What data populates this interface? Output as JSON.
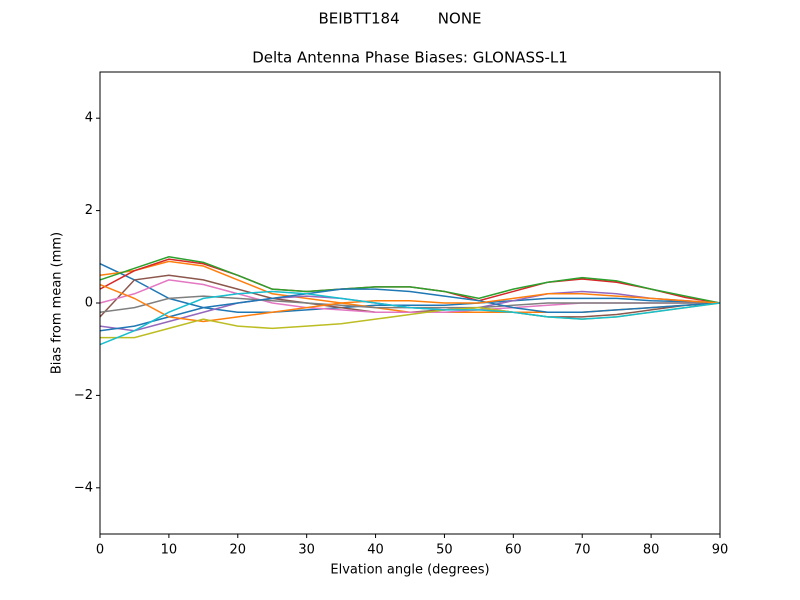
{
  "chart_data": {
    "type": "line",
    "suptitle": "BEIBTT184        NONE",
    "title": "Delta Antenna Phase Biases: GLONASS-L1",
    "x_label": "Elvation angle (degrees)",
    "y_label": "Bias from mean (mm)",
    "x": [
      0,
      5,
      10,
      15,
      20,
      25,
      30,
      35,
      40,
      45,
      50,
      55,
      60,
      65,
      70,
      75,
      80,
      85,
      90
    ],
    "xlim": [
      0,
      90
    ],
    "xticks": [
      0,
      10,
      20,
      30,
      40,
      50,
      60,
      70,
      80,
      90
    ],
    "ylim": [
      -5,
      5
    ],
    "yticks": [
      {
        "value": -4,
        "label": "−4"
      },
      {
        "value": -2,
        "label": "−2"
      },
      0,
      2,
      4
    ],
    "series": [
      {
        "color": "#1f77b4",
        "values": [
          0.85,
          0.5,
          0.1,
          -0.1,
          -0.2,
          -0.2,
          -0.15,
          -0.1,
          -0.05,
          -0.05,
          -0.05,
          0,
          0.05,
          0.1,
          0.1,
          0.1,
          0.05,
          0.03,
          0
        ]
      },
      {
        "color": "#ff7f0e",
        "values": [
          0.6,
          0.7,
          0.9,
          0.8,
          0.5,
          0.2,
          0.1,
          0,
          -0.1,
          -0.2,
          -0.2,
          -0.2,
          -0.2,
          -0.2,
          -0.2,
          -0.15,
          -0.1,
          -0.05,
          0
        ]
      },
      {
        "color": "#d62728",
        "values": [
          0.3,
          0.7,
          0.95,
          0.85,
          0.6,
          0.3,
          0.25,
          0.3,
          0.35,
          0.35,
          0.25,
          0.05,
          0.25,
          0.45,
          0.52,
          0.45,
          0.3,
          0.12,
          0
        ]
      },
      {
        "color": "#2ca02c",
        "values": [
          0.5,
          0.75,
          1.0,
          0.88,
          0.6,
          0.3,
          0.25,
          0.3,
          0.35,
          0.35,
          0.25,
          0.1,
          0.3,
          0.45,
          0.55,
          0.48,
          0.3,
          0.15,
          0
        ]
      },
      {
        "color": "#9467bd",
        "values": [
          -0.5,
          -0.6,
          -0.4,
          -0.2,
          0,
          0.1,
          0.15,
          0.1,
          0,
          -0.1,
          -0.15,
          -0.1,
          0.05,
          0.2,
          0.25,
          0.2,
          0.1,
          0.05,
          0
        ]
      },
      {
        "color": "#8c564b",
        "values": [
          -0.3,
          0.5,
          0.6,
          0.5,
          0.3,
          0.1,
          0,
          -0.1,
          -0.2,
          -0.2,
          -0.15,
          -0.1,
          -0.2,
          -0.3,
          -0.3,
          -0.25,
          -0.15,
          -0.05,
          0
        ]
      },
      {
        "color": "#e377c2",
        "values": [
          0,
          0.2,
          0.5,
          0.4,
          0.2,
          0,
          -0.1,
          -0.15,
          -0.2,
          -0.2,
          -0.2,
          -0.15,
          -0.1,
          -0.05,
          0,
          0,
          0,
          0,
          0
        ]
      },
      {
        "color": "#7f7f7f",
        "values": [
          -0.2,
          -0.1,
          0.1,
          0.15,
          0.1,
          0.05,
          0,
          -0.05,
          -0.1,
          -0.1,
          -0.1,
          -0.1,
          -0.05,
          0,
          0,
          0,
          0,
          0,
          0
        ]
      },
      {
        "color": "#1f77b4",
        "values": [
          -0.6,
          -0.5,
          -0.3,
          -0.1,
          0,
          0.1,
          0.2,
          0.3,
          0.3,
          0.25,
          0.15,
          0.05,
          -0.1,
          -0.2,
          -0.2,
          -0.15,
          -0.1,
          -0.05,
          0
        ]
      },
      {
        "color": "#ff7f0e",
        "values": [
          0.4,
          0.1,
          -0.3,
          -0.4,
          -0.3,
          -0.2,
          -0.1,
          0,
          0.05,
          0.05,
          0,
          0,
          0.1,
          0.2,
          0.2,
          0.15,
          0.1,
          0.05,
          0
        ]
      },
      {
        "color": "#bcbd22",
        "values": [
          -0.75,
          -0.75,
          -0.55,
          -0.35,
          -0.5,
          -0.55,
          -0.5,
          -0.45,
          -0.35,
          -0.25,
          -0.15,
          -0.1,
          -0.2,
          -0.3,
          -0.35,
          -0.3,
          -0.2,
          -0.1,
          0
        ]
      },
      {
        "color": "#17becf",
        "values": [
          -0.9,
          -0.6,
          -0.2,
          0.1,
          0.2,
          0.25,
          0.2,
          0.1,
          0,
          -0.1,
          -0.15,
          -0.15,
          -0.2,
          -0.3,
          -0.35,
          -0.3,
          -0.2,
          -0.1,
          0
        ]
      }
    ]
  }
}
